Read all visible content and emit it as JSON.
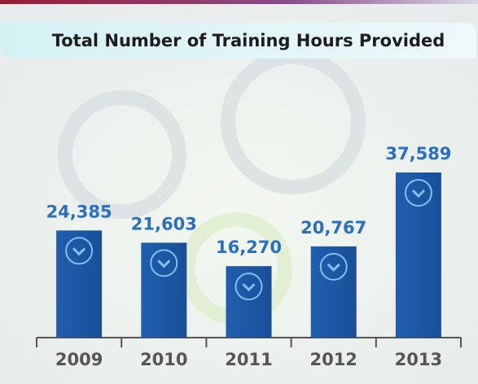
{
  "chart_data": {
    "type": "bar",
    "title": "Total Number of Training Hours Provided",
    "categories": [
      "2009",
      "2010",
      "2011",
      "2012",
      "2013"
    ],
    "values": [
      24385,
      21603,
      16270,
      20767,
      37589
    ],
    "value_labels": [
      "24,385",
      "21,603",
      "16,270",
      "20,767",
      "37,589"
    ],
    "color": "#1f5fae"
  }
}
